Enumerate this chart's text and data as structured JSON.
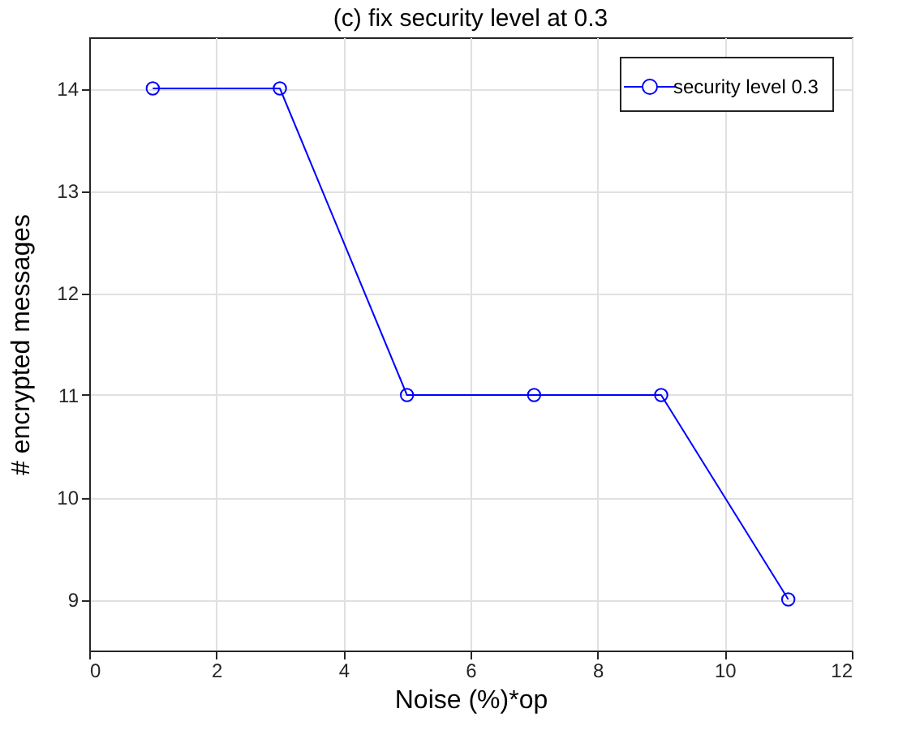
{
  "chart_data": {
    "type": "line",
    "title": "(c) fix security level at 0.3",
    "xlabel": "Noise (%)*op",
    "ylabel": "# encrypted messages",
    "x": [
      1,
      3,
      5,
      7,
      9,
      11
    ],
    "series": [
      {
        "name": "security level 0.3",
        "color": "#0000ff",
        "values": [
          14,
          14,
          11,
          11,
          11,
          9
        ]
      }
    ],
    "xlim": [
      0,
      12
    ],
    "xticks": [
      0,
      2,
      4,
      6,
      8,
      10,
      12
    ],
    "ylim": [
      8.5,
      14.5
    ],
    "yticks": [
      9,
      10,
      11,
      12,
      13,
      14
    ],
    "grid": true,
    "legend": "top right",
    "marker": "circle",
    "line_style": "solid"
  }
}
